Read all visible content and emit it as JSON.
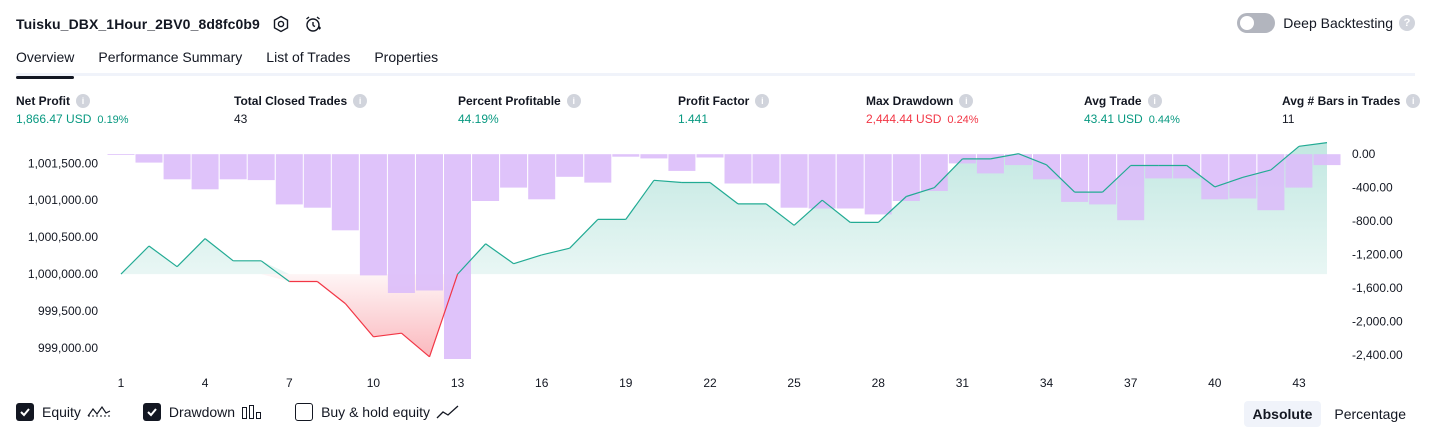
{
  "header": {
    "strategy_name": "Tuisku_DBX_1Hour_2BV0_8d8fc0b9",
    "settings_icon": "gear-icon",
    "alert_icon": "alarm-clock-icon",
    "deep_backtesting_label": "Deep Backtesting",
    "deep_backtesting_enabled": false,
    "help_glyph": "?"
  },
  "tabs": [
    {
      "label": "Overview",
      "active": true
    },
    {
      "label": "Performance Summary",
      "active": false
    },
    {
      "label": "List of Trades",
      "active": false
    },
    {
      "label": "Properties",
      "active": false
    }
  ],
  "metrics": {
    "info_glyph": "i",
    "net_profit": {
      "label": "Net Profit",
      "value": "1,866.47 USD",
      "pct": "0.19%"
    },
    "total_closed_trades": {
      "label": "Total Closed Trades",
      "value": "43"
    },
    "percent_profitable": {
      "label": "Percent Profitable",
      "value": "44.19%"
    },
    "profit_factor": {
      "label": "Profit Factor",
      "value": "1.441"
    },
    "max_drawdown": {
      "label": "Max Drawdown",
      "value": "2,444.44 USD",
      "pct": "0.24%"
    },
    "avg_trade": {
      "label": "Avg Trade",
      "value": "43.41 USD",
      "pct": "0.44%"
    },
    "avg_bars": {
      "label": "Avg # Bars in Trades",
      "value": "11"
    }
  },
  "colors": {
    "profit": "#089981",
    "loss": "#f23645",
    "equity_line_up": "#22ab94",
    "equity_line_down": "#f23645",
    "drawdown_bar": "#dbbcfa",
    "buy_hold_line": "#2962ff"
  },
  "chart_data": {
    "type": "line",
    "x_ticks": [
      1,
      4,
      7,
      10,
      13,
      16,
      19,
      22,
      25,
      28,
      31,
      34,
      37,
      40,
      43
    ],
    "left_axis": {
      "ticks": [
        "999,000.00",
        "999,500.00",
        "1,000,000.00",
        "1,000,500.00",
        "1,001,000.00",
        "1,001,500.00"
      ],
      "ylim": [
        998850,
        1001680
      ],
      "baseline": 1000000
    },
    "right_axis": {
      "ticks": [
        "0.00",
        "-400.00",
        "-800.00",
        "-1,200.00",
        "-1,600.00",
        "-2,000.00",
        "-2,400.00"
      ],
      "ylim": [
        -2450,
        50
      ]
    },
    "series": [
      {
        "name": "Equity",
        "axis": "left",
        "values": [
          1000000,
          1000380,
          1000100,
          1000480,
          1000180,
          1000180,
          999900,
          999900,
          999600,
          999150,
          999200,
          998880,
          1000000,
          1000410,
          1000140,
          1000260,
          1000350,
          1000740,
          1000740,
          1001270,
          1001240,
          1001240,
          1000950,
          1000950,
          1000660,
          1001000,
          1000700,
          1000700,
          1001050,
          1001170,
          1001560,
          1001560,
          1001630,
          1001480,
          1001110,
          1001110,
          1001470,
          1001470,
          1001470,
          1001180,
          1001310,
          1001410,
          1001730,
          1001780
        ]
      },
      {
        "name": "Drawdown",
        "axis": "right",
        "values": [
          -10,
          -100,
          -300,
          -420,
          -300,
          -310,
          -600,
          -640,
          -910,
          -1450,
          -1660,
          -1630,
          -2450,
          -560,
          -400,
          -540,
          -270,
          -340,
          -30,
          -50,
          -200,
          -40,
          -350,
          -350,
          -640,
          -650,
          -650,
          -720,
          -560,
          -440,
          -110,
          -230,
          -130,
          -300,
          -570,
          -600,
          -790,
          -290,
          -290,
          -540,
          -530,
          -670,
          -400,
          -130
        ]
      }
    ]
  },
  "legend": {
    "items": [
      {
        "label": "Equity",
        "checked": true,
        "icon": "equity-line-icon"
      },
      {
        "label": "Drawdown",
        "checked": true,
        "icon": "bar-chart-icon"
      },
      {
        "label": "Buy & hold equity",
        "checked": false,
        "icon": "trend-line-icon"
      }
    ]
  },
  "view_modes": {
    "absolute": "Absolute",
    "percentage": "Percentage",
    "active": "absolute"
  }
}
